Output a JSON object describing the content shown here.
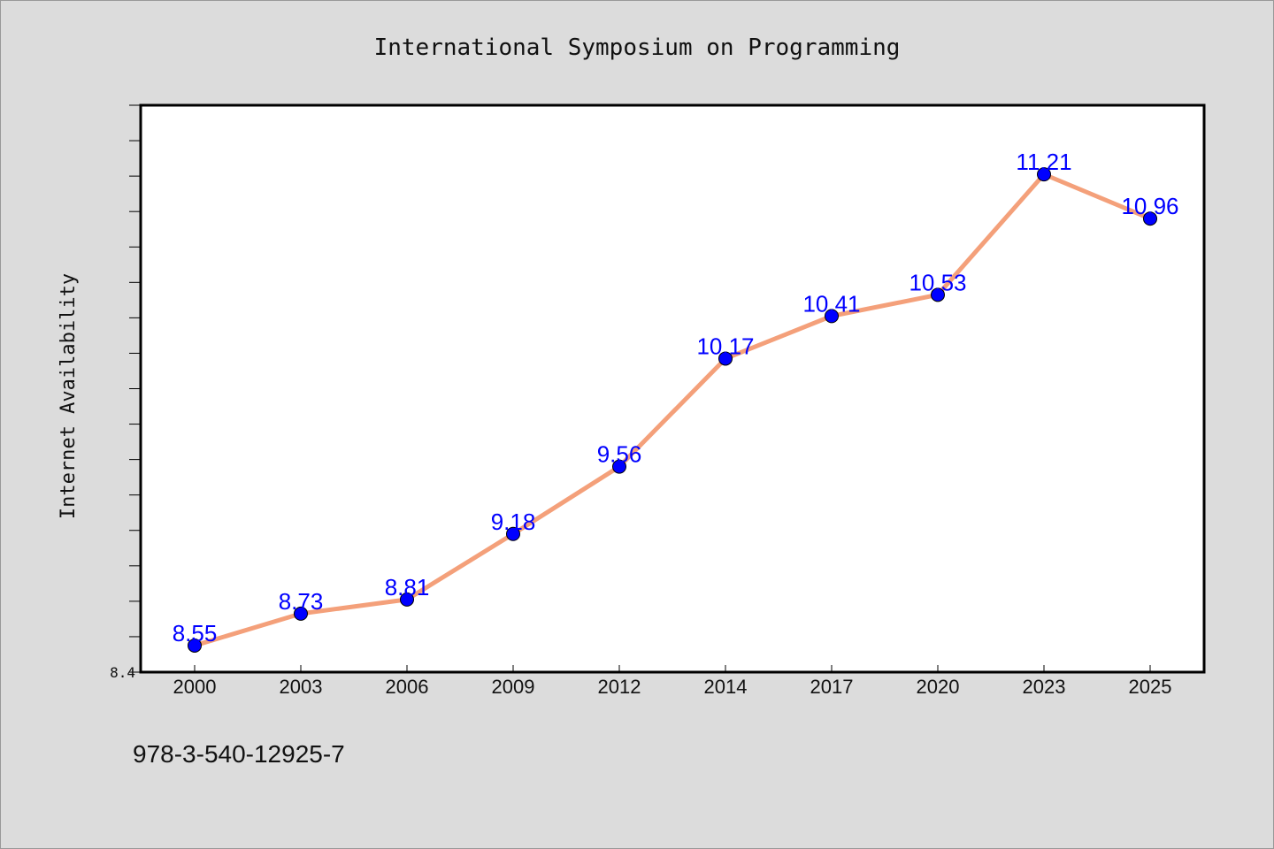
{
  "chart_data": {
    "type": "line",
    "title": "International Symposium on Programming",
    "xlabel": "",
    "ylabel": "Internet Availability",
    "categories": [
      "2000",
      "2003",
      "2006",
      "2009",
      "2012",
      "2014",
      "2017",
      "2020",
      "2023",
      "2025"
    ],
    "series": [
      {
        "values": [
          8.55,
          8.73,
          8.81,
          9.18,
          9.56,
          10.17,
          10.41,
          10.53,
          11.21,
          10.96
        ],
        "data_labels": [
          "8.55",
          "8.73",
          "8.81",
          "9.18",
          "9.56",
          "10.17",
          "10.41",
          "10.53",
          "11.21",
          "10.96"
        ],
        "line_color": "#f4a07a",
        "marker_color": "#0000ff"
      }
    ],
    "ylim": [
      8.4,
      11.6
    ],
    "ytick_labels": [
      "8.4"
    ],
    "grid": false,
    "legend": "none"
  },
  "footer": {
    "isbn": "978-3-540-12925-7"
  },
  "colors": {
    "background": "#dcdcdc",
    "plot_background": "#ffffff",
    "line": "#f4a07a",
    "marker": "#0000ff",
    "data_label": "#0000ff"
  }
}
